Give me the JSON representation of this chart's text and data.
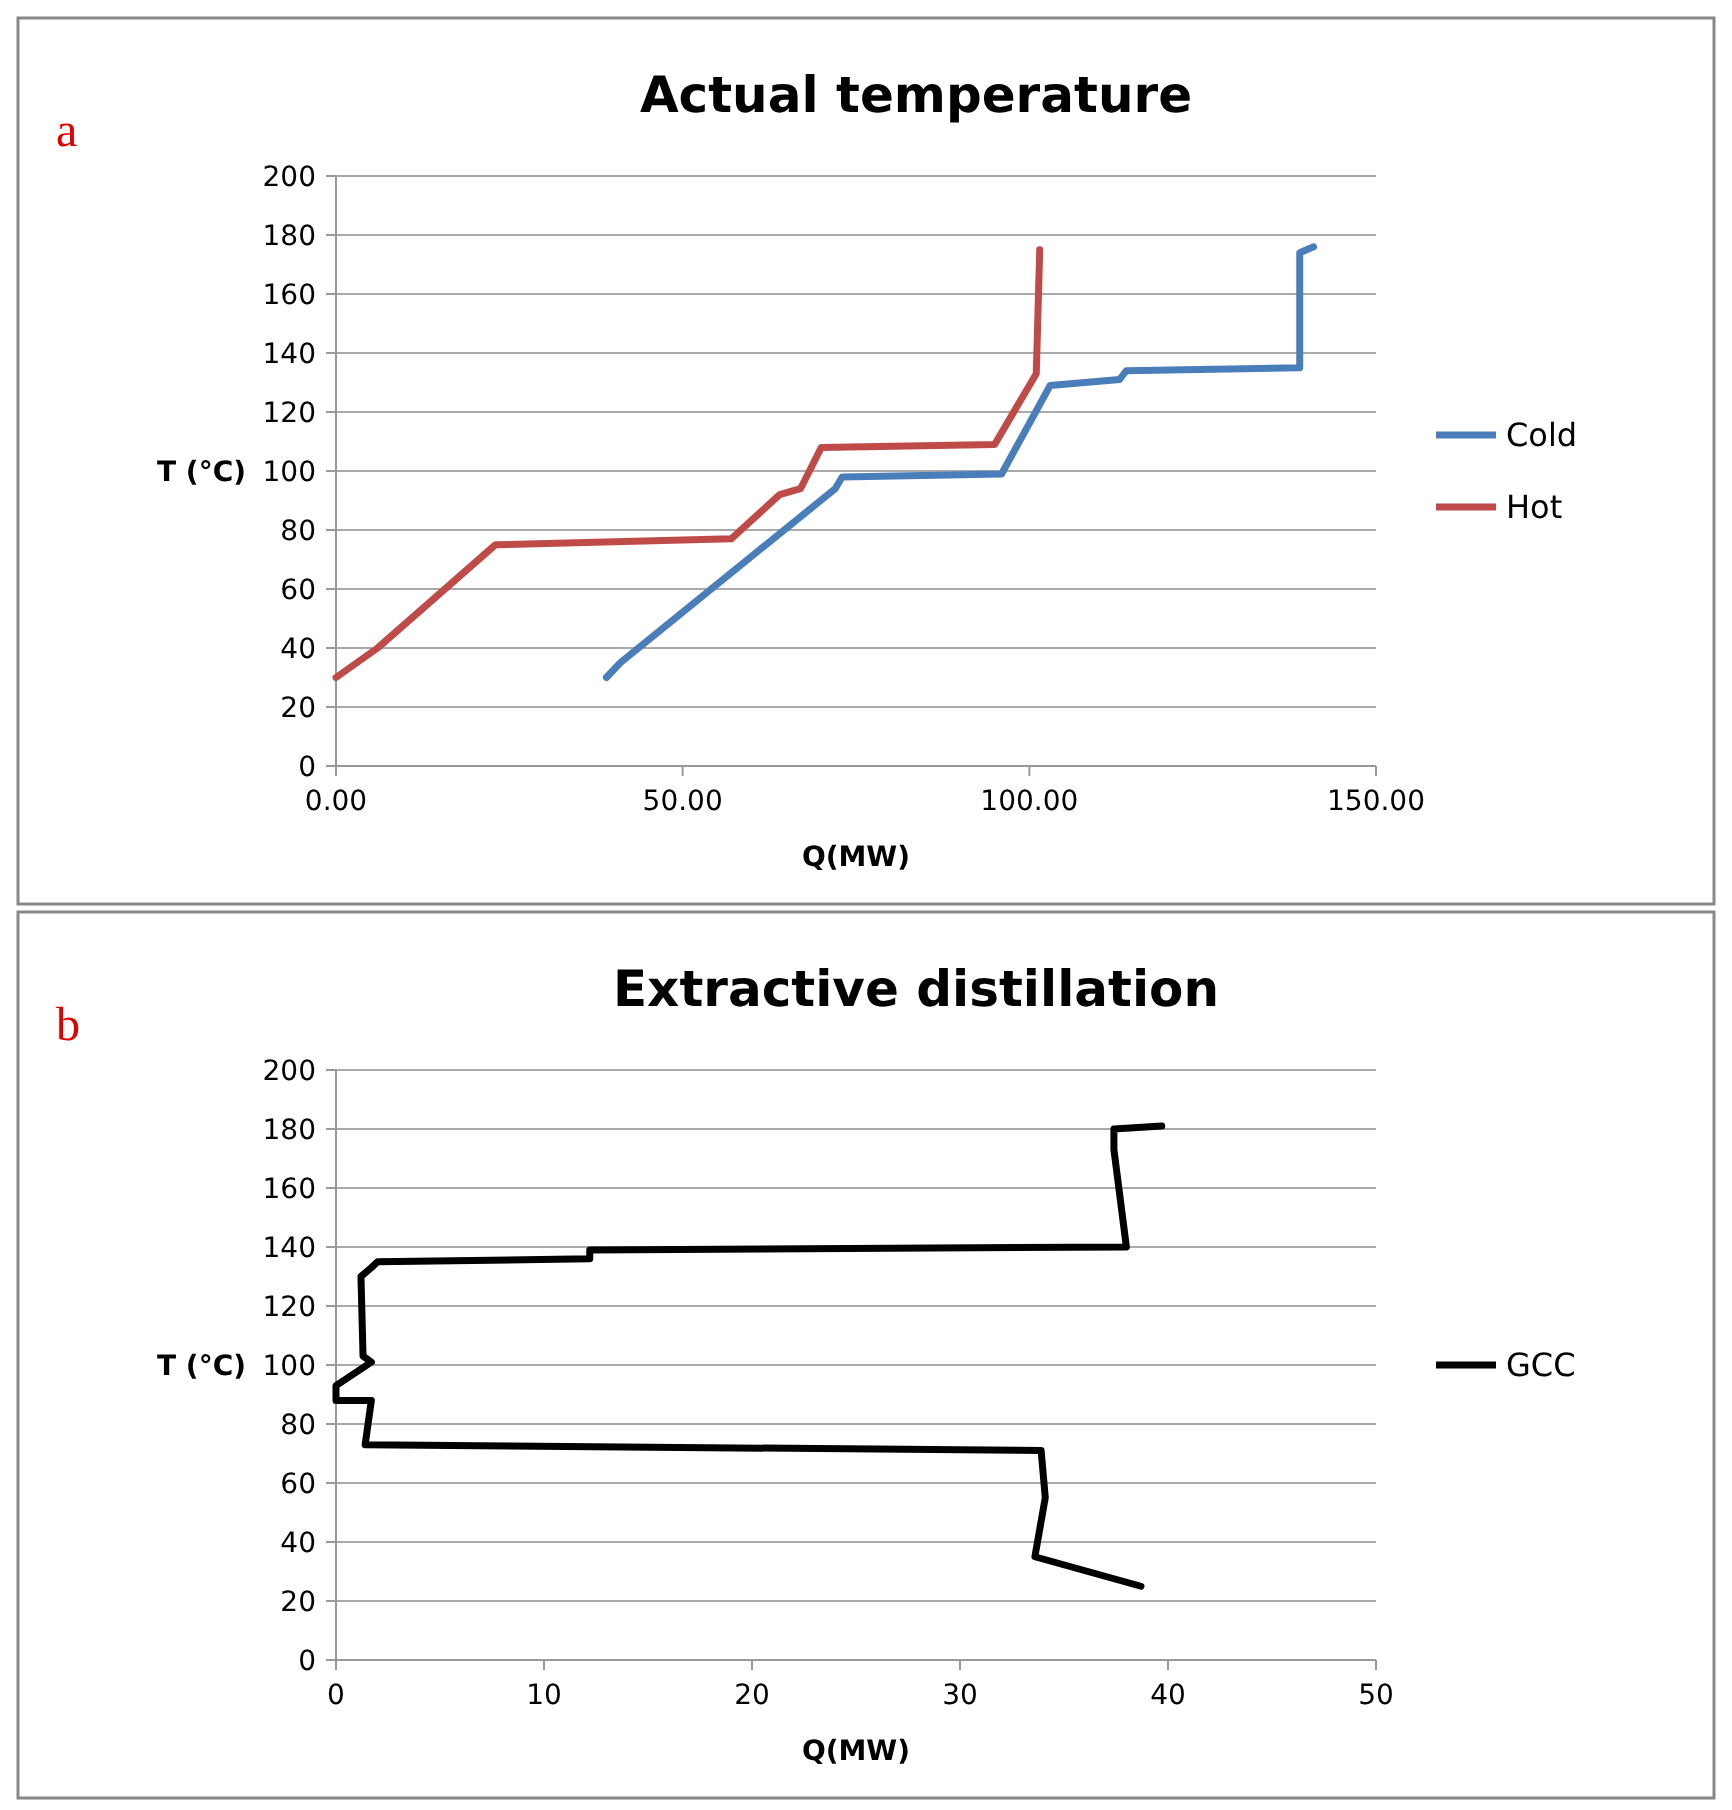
{
  "chart_data": [
    {
      "type": "line",
      "title": "Actual temperature",
      "xlabel": "Q(MW)",
      "ylabel": "T (°C)",
      "annotations": [
        "a"
      ],
      "xlim": [
        0,
        150
      ],
      "xticks": [
        {
          "value": 0,
          "label": "0.00"
        },
        {
          "value": 50,
          "label": "50.00"
        },
        {
          "value": 100,
          "label": "100.00"
        },
        {
          "value": 150,
          "label": "150.00"
        }
      ],
      "ylim": [
        0,
        200
      ],
      "yticks": [
        0,
        20,
        40,
        60,
        80,
        100,
        120,
        140,
        160,
        180,
        200
      ],
      "grid": "y",
      "legend": "right",
      "marker": "none",
      "line_style": "solid",
      "series": [
        {
          "name": "Cold",
          "color": "#4a7ebb",
          "x": [
            39,
            41,
            72,
            73,
            96,
            103,
            113,
            114,
            139,
            139,
            141
          ],
          "values": [
            30,
            35,
            94,
            98,
            99,
            129,
            131,
            134,
            135,
            174,
            176
          ]
        },
        {
          "name": "Hot",
          "color": "#be4b48",
          "x": [
            0,
            6,
            23,
            57,
            64,
            67,
            70,
            95,
            101,
            101.5
          ],
          "values": [
            30,
            40,
            75,
            77,
            92,
            94,
            108,
            109,
            133,
            175
          ]
        }
      ]
    },
    {
      "type": "line",
      "title": "Extractive distillation",
      "xlabel": "Q(MW)",
      "ylabel": "T (°C)",
      "annotations": [
        "b"
      ],
      "xlim": [
        0,
        50
      ],
      "xticks": [
        0,
        10,
        20,
        30,
        40,
        50
      ],
      "ylim": [
        0,
        200
      ],
      "yticks": [
        0,
        20,
        40,
        60,
        80,
        100,
        120,
        140,
        160,
        180,
        200
      ],
      "grid": "y",
      "legend": "right",
      "marker": "none",
      "line_style": "solid",
      "series": [
        {
          "name": "GCC",
          "color": "#000000",
          "x": [
            38.7,
            33.6,
            34.1,
            33.9,
            1.4,
            1.7,
            0,
            0,
            1.7,
            1.3,
            1.2,
            1.7,
            2,
            12.2,
            12.2,
            38,
            37.4,
            37.4,
            39.7
          ],
          "values": [
            25,
            35,
            55,
            71,
            73,
            88,
            88,
            93,
            101,
            103,
            130,
            133,
            135,
            136,
            139,
            140,
            173,
            180,
            181
          ]
        }
      ]
    }
  ]
}
